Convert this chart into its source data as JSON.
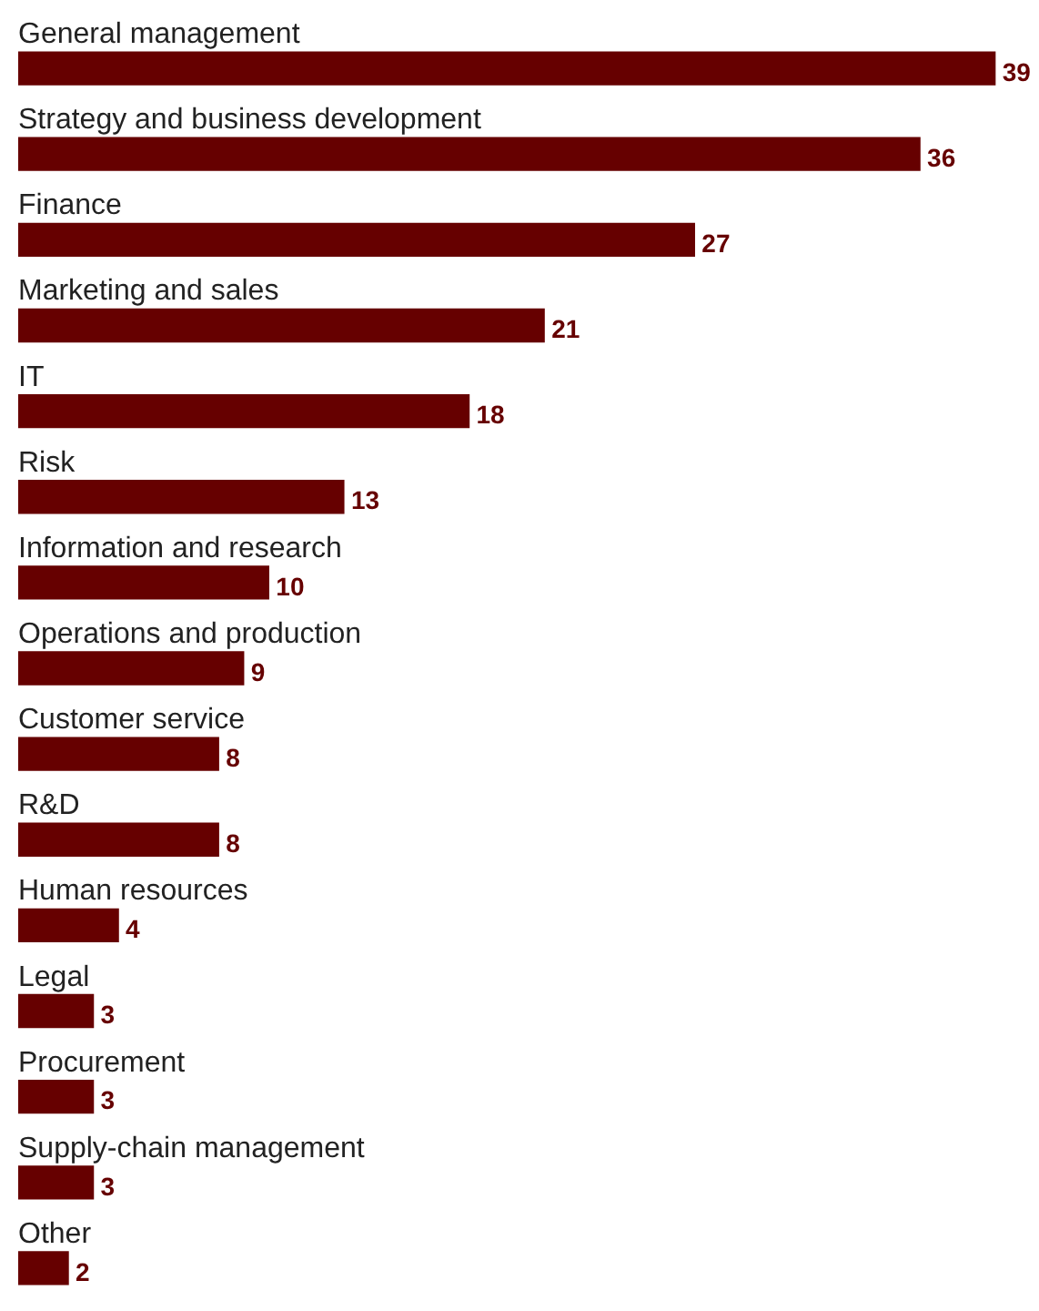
{
  "chart_data": {
    "type": "bar",
    "orientation": "horizontal",
    "categories": [
      "General management",
      "Strategy and business development",
      "Finance",
      "Marketing and sales",
      "IT",
      "Risk",
      "Information and research",
      "Operations and production",
      "Customer service",
      "R&D",
      "Human resources",
      "Legal",
      "Procurement",
      "Supply-chain management",
      "Other"
    ],
    "values": [
      39,
      36,
      27,
      21,
      18,
      13,
      10,
      9,
      8,
      8,
      4,
      3,
      3,
      3,
      2
    ],
    "color": "#660000",
    "data_labels": true,
    "legend": false,
    "tick_labels": false
  }
}
